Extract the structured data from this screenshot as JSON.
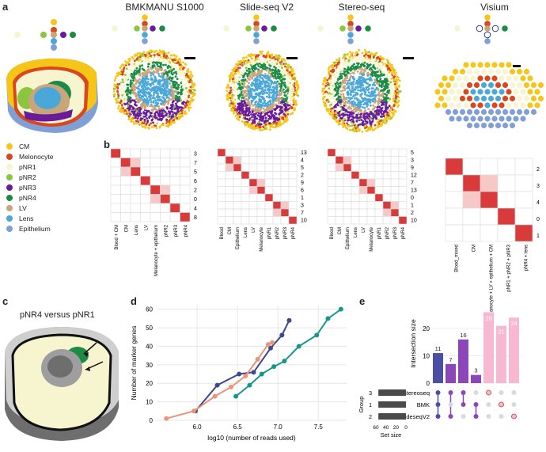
{
  "panel_labels": {
    "a": "a",
    "b": "b",
    "c": "c",
    "d": "d",
    "e": "e"
  },
  "columns": [
    "BMKMANU S1000",
    "Slide-seq V2",
    "Stereo-seq",
    "Visium"
  ],
  "legend": [
    {
      "label": "CM",
      "color": "#f5c518"
    },
    {
      "label": "Melonocyte",
      "color": "#d9481c"
    },
    {
      "label": "pNR1",
      "color": "#f7f5d0"
    },
    {
      "label": "pNR2",
      "color": "#8cc63f"
    },
    {
      "label": "pNR3",
      "color": "#6a1b9a"
    },
    {
      "label": "pNR4",
      "color": "#1a8c46"
    },
    {
      "label": "LV",
      "color": "#c9a57a"
    },
    {
      "label": "Lens",
      "color": "#4aa8d8"
    },
    {
      "label": "Epithelium",
      "color": "#7f9fd6"
    }
  ],
  "heatmaps": [
    {
      "rows": [
        "3",
        "7",
        "5",
        "6",
        "2",
        "0",
        "4",
        "8"
      ],
      "cols": [
        "Blood + CM",
        "CM",
        "Lens",
        "LV",
        "Melanocyte + epithelium",
        "pNR2",
        "pNR3",
        "pNR4"
      ]
    },
    {
      "rows": [
        "13",
        "4",
        "5",
        "2",
        "9",
        "6",
        "1",
        "3",
        "7",
        "10"
      ],
      "cols": [
        "Blood",
        "CM",
        "Epithelium",
        "Lens",
        "LV",
        "Melanocyte",
        "pNR1",
        "pNR2",
        "pNR3",
        "pNR4"
      ]
    },
    {
      "rows": [
        "5",
        "3",
        "9",
        "12",
        "7",
        "13",
        "0",
        "1",
        "2",
        "10"
      ],
      "cols": [
        "Blood",
        "CM",
        "Epithelium",
        "Lens",
        "LV",
        "Melanocyte",
        "pNR1",
        "pNR2",
        "pNR3",
        "pNR4"
      ]
    },
    {
      "rows": [
        "2",
        "3",
        "4",
        "0",
        "1"
      ],
      "cols": [
        "Blood_mixed",
        "CM",
        "Melanocyte + LV + epithelium + CM",
        "pNR1 + pNR2 + pNR3",
        "pNR4 + lens"
      ]
    }
  ],
  "panel_c": {
    "title": "pNR4 versus pNR1"
  },
  "chart_data": [
    {
      "type": "line",
      "xlabel": "log10 (number of reads used)",
      "ylabel": "Number of marker genes",
      "xlim": [
        5.5,
        7.85
      ],
      "ylim": [
        0,
        62
      ],
      "xticks": [
        "6.0",
        "6.5",
        "7.0",
        "7.5"
      ],
      "yticks": [
        "0",
        "10",
        "20",
        "30",
        "40",
        "50",
        "60"
      ],
      "series": [
        {
          "color": "#3d4a8a",
          "x": [
            5.98,
            6.25,
            6.52,
            6.7,
            6.91,
            7.05,
            7.14
          ],
          "y": [
            5,
            19,
            25,
            26,
            39,
            46,
            54
          ]
        },
        {
          "color": "#e8957a",
          "x": [
            5.62,
            5.96,
            6.22,
            6.42,
            6.6,
            6.75,
            6.88,
            6.93
          ],
          "y": [
            1,
            5,
            13,
            18,
            24,
            33,
            41,
            42
          ]
        },
        {
          "color": "#17968c",
          "x": [
            6.48,
            6.65,
            6.8,
            6.95,
            7.08,
            7.26,
            7.48,
            7.62,
            7.78
          ],
          "y": [
            13,
            19,
            25,
            29,
            32,
            40,
            46,
            55,
            60
          ]
        }
      ]
    },
    {
      "type": "bar",
      "ylabel": "Intersection size",
      "yticks": [
        "0",
        "10",
        "20"
      ],
      "ylim": [
        0,
        29
      ],
      "values": [
        11,
        7,
        16,
        3,
        26,
        21,
        24
      ],
      "colors": [
        "#4a4fa3",
        "#8b46b8",
        "#8b46b8",
        "#8b46b8",
        "#f7b8d0",
        "#f7b8d0",
        "#f7b8d0"
      ],
      "set_names": [
        "Stereoseq",
        "BMK",
        "SlideseqV2"
      ],
      "group_ticks": [
        "3",
        "1",
        "2"
      ],
      "group_label": "Group",
      "set_size_label": "Set size",
      "set_size_ticks": [
        "60",
        "40",
        "20",
        "0"
      ],
      "set_sizes": [
        55,
        55,
        55
      ]
    }
  ]
}
